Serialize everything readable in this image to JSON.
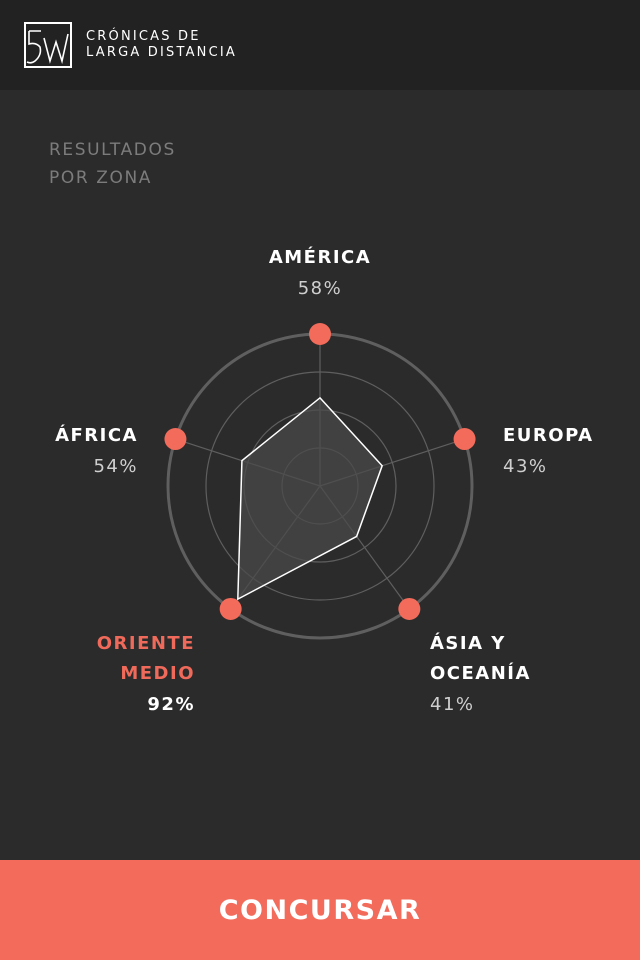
{
  "header": {
    "logo_text": "5W",
    "brand_line1": "CRÓNICAS DE",
    "brand_line2": "LARGA DISTANCIA"
  },
  "section": {
    "title_line1": "RESULTADOS",
    "title_line2": "POR ZONA"
  },
  "chart_data": {
    "type": "radar",
    "title": "",
    "axes": [
      {
        "name_line1": "AMÉRICA",
        "name_line2": "",
        "label": "58%",
        "value": 58
      },
      {
        "name_line1": "EUROPA",
        "name_line2": "",
        "label": "43%",
        "value": 43
      },
      {
        "name_line1": "ÁSIA Y",
        "name_line2": "OCEANÍA",
        "label": "41%",
        "value": 41
      },
      {
        "name_line1": "ORIENTE",
        "name_line2": "MEDIO",
        "label": "92%",
        "value": 92
      },
      {
        "name_line1": "ÁFRICA",
        "name_line2": "",
        "label": "54%",
        "value": 54
      }
    ],
    "highlighted": "ORIENTE MEDIO",
    "range": [
      0,
      100
    ],
    "grid": true
  },
  "colors": {
    "accent": "#f26b5b",
    "background": "#2b2b2b",
    "header": "#222222",
    "grid": "#5f5f5f",
    "polygon_fill": "#4a4a4a",
    "polygon_stroke": "#ffffff"
  },
  "cta": {
    "label": "CONCURSAR"
  }
}
